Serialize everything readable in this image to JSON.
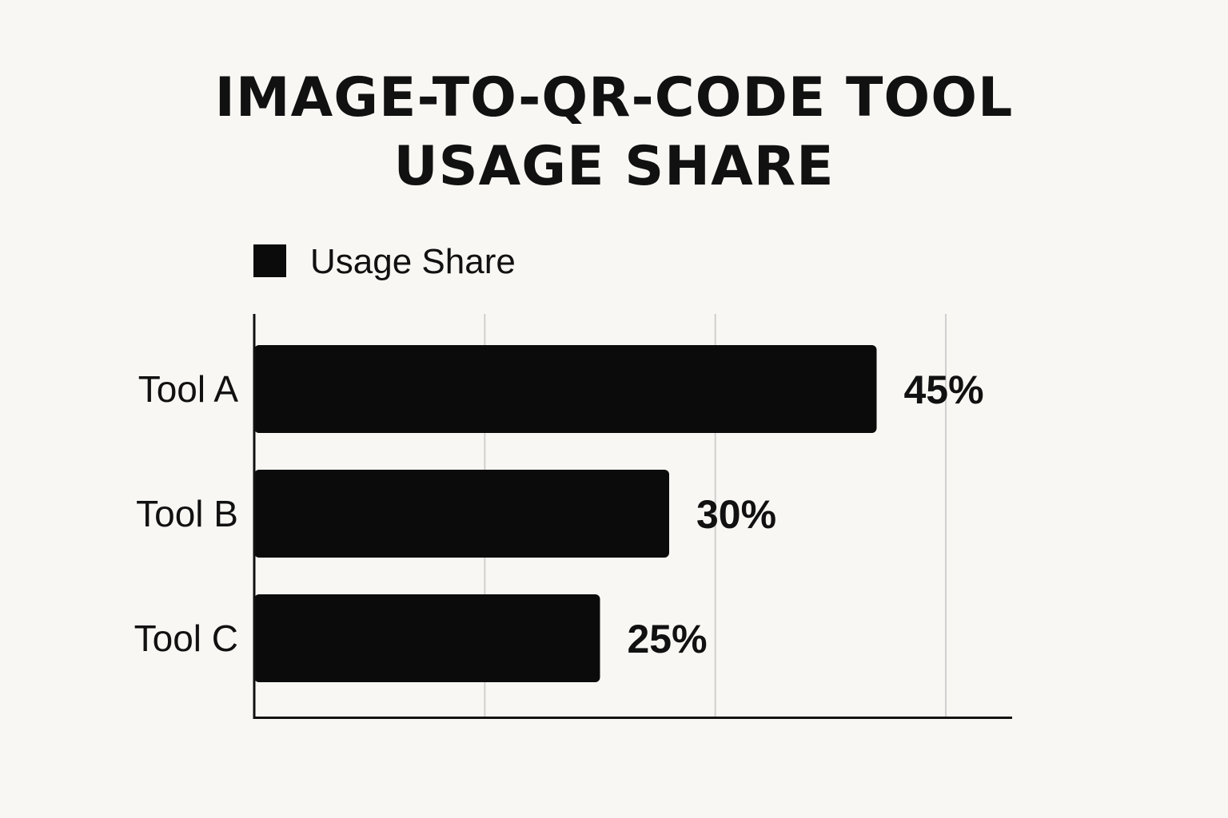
{
  "chart_data": {
    "type": "bar",
    "orientation": "horizontal",
    "title_lines": [
      "IMAGE-TO-QR-CODE TOOL",
      "USAGE SHARE"
    ],
    "categories": [
      "Tool A",
      "Tool B",
      "Tool C"
    ],
    "series": [
      {
        "name": "Usage Share",
        "values": [
          45,
          30,
          25
        ],
        "color": "#0b0b0b"
      }
    ],
    "value_labels": [
      "45%",
      "30%",
      "25%"
    ],
    "value_unit": "%",
    "xlim": [
      0,
      50
    ],
    "grid_x": true,
    "legend_position": "top-left",
    "colors": {
      "background": "#f8f7f3",
      "bar": "#0b0b0b",
      "grid": "#cfcfcf",
      "axis": "#111111"
    }
  }
}
